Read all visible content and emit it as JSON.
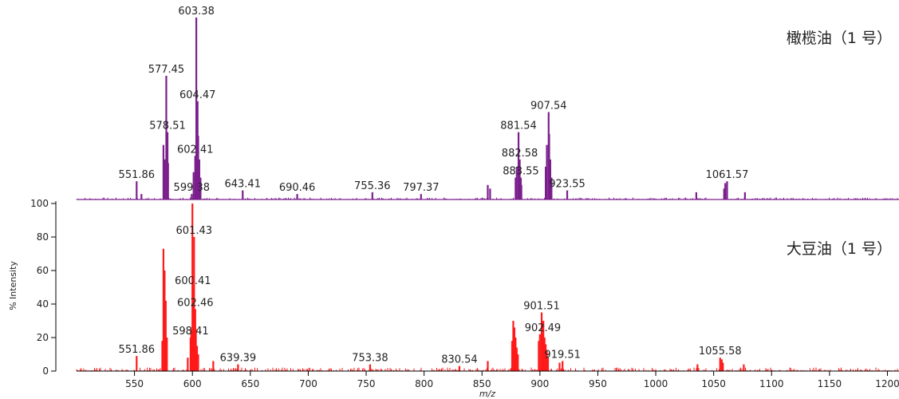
{
  "colors": {
    "top_series": "#7a1f8c",
    "bottom_series": "#ff1a1a",
    "axis": "#000000"
  },
  "chart_data": {
    "type": "line",
    "xlabel": "m/z",
    "ylabel": "% Intensity",
    "xlim": [
      500,
      1210
    ],
    "xticks": [
      550,
      600,
      650,
      700,
      750,
      800,
      850,
      900,
      950,
      1000,
      1050,
      1100,
      1150,
      1200
    ],
    "ylim": [
      0,
      100
    ],
    "yticks": [
      0,
      20,
      40,
      60,
      80,
      100
    ],
    "panels": [
      {
        "title": "橄榄油（1 号）",
        "peaks": [
          {
            "x": 551.86,
            "y": 10,
            "label": "551.86"
          },
          {
            "x": 577.45,
            "y": 68,
            "label": "577.45"
          },
          {
            "x": 578.51,
            "y": 37,
            "label": "578.51"
          },
          {
            "x": 599.38,
            "y": 3,
            "label": "599.38"
          },
          {
            "x": 602.41,
            "y": 24,
            "label": "602.41"
          },
          {
            "x": 603.38,
            "y": 100,
            "label": "603.38"
          },
          {
            "x": 604.47,
            "y": 54,
            "label": "604.47"
          },
          {
            "x": 643.41,
            "y": 5,
            "label": "643.41"
          },
          {
            "x": 690.46,
            "y": 3,
            "label": "690.46"
          },
          {
            "x": 755.36,
            "y": 4,
            "label": "755.36"
          },
          {
            "x": 797.37,
            "y": 3,
            "label": "797.37"
          },
          {
            "x": 881.54,
            "y": 37,
            "label": "881.54"
          },
          {
            "x": 882.58,
            "y": 22,
            "label": "882.58"
          },
          {
            "x": 883.55,
            "y": 12,
            "label": "883.55"
          },
          {
            "x": 907.54,
            "y": 48,
            "label": "907.54"
          },
          {
            "x": 923.55,
            "y": 5,
            "label": "923.55"
          },
          {
            "x": 1061.57,
            "y": 10,
            "label": "1061.57"
          }
        ],
        "extra_peaks": [
          {
            "x": 556,
            "y": 3
          },
          {
            "x": 575,
            "y": 30
          },
          {
            "x": 576,
            "y": 22
          },
          {
            "x": 579,
            "y": 20
          },
          {
            "x": 601,
            "y": 15
          },
          {
            "x": 605,
            "y": 35
          },
          {
            "x": 606,
            "y": 22
          },
          {
            "x": 607,
            "y": 12
          },
          {
            "x": 855,
            "y": 8
          },
          {
            "x": 857,
            "y": 6
          },
          {
            "x": 879,
            "y": 12
          },
          {
            "x": 880,
            "y": 18
          },
          {
            "x": 884,
            "y": 8
          },
          {
            "x": 905,
            "y": 18
          },
          {
            "x": 906,
            "y": 30
          },
          {
            "x": 908,
            "y": 36
          },
          {
            "x": 909,
            "y": 22
          },
          {
            "x": 910,
            "y": 12
          },
          {
            "x": 1035,
            "y": 4
          },
          {
            "x": 1059,
            "y": 6
          },
          {
            "x": 1060,
            "y": 9
          },
          {
            "x": 1077,
            "y": 4
          }
        ]
      },
      {
        "title": "大豆油（1 号）",
        "peaks": [
          {
            "x": 551.86,
            "y": 9,
            "label": "551.86"
          },
          {
            "x": 598.41,
            "y": 20,
            "label": "598.41"
          },
          {
            "x": 600.41,
            "y": 50,
            "label": "600.41"
          },
          {
            "x": 601.43,
            "y": 80,
            "label": "601.43"
          },
          {
            "x": 602.46,
            "y": 37,
            "label": "602.46"
          },
          {
            "x": 639.39,
            "y": 4,
            "label": "639.39"
          },
          {
            "x": 753.38,
            "y": 4,
            "label": "753.38"
          },
          {
            "x": 830.54,
            "y": 3,
            "label": "830.54"
          },
          {
            "x": 901.51,
            "y": 35,
            "label": "901.51"
          },
          {
            "x": 902.49,
            "y": 22,
            "label": "902.49"
          },
          {
            "x": 919.51,
            "y": 6,
            "label": "919.51"
          },
          {
            "x": 1055.58,
            "y": 8,
            "label": "1055.58"
          }
        ],
        "extra_peaks": [
          {
            "x": 574,
            "y": 18
          },
          {
            "x": 575,
            "y": 73
          },
          {
            "x": 576,
            "y": 60
          },
          {
            "x": 577,
            "y": 42
          },
          {
            "x": 578,
            "y": 20
          },
          {
            "x": 596,
            "y": 8
          },
          {
            "x": 599,
            "y": 25
          },
          {
            "x": 600,
            "y": 100
          },
          {
            "x": 603,
            "y": 25
          },
          {
            "x": 604,
            "y": 15
          },
          {
            "x": 605,
            "y": 10
          },
          {
            "x": 618,
            "y": 6
          },
          {
            "x": 855,
            "y": 6
          },
          {
            "x": 876,
            "y": 18
          },
          {
            "x": 877,
            "y": 30
          },
          {
            "x": 878,
            "y": 26
          },
          {
            "x": 879,
            "y": 20
          },
          {
            "x": 880,
            "y": 14
          },
          {
            "x": 881,
            "y": 10
          },
          {
            "x": 899,
            "y": 18
          },
          {
            "x": 900,
            "y": 22
          },
          {
            "x": 903,
            "y": 30
          },
          {
            "x": 904,
            "y": 20
          },
          {
            "x": 905,
            "y": 16
          },
          {
            "x": 906,
            "y": 12
          },
          {
            "x": 907,
            "y": 8
          },
          {
            "x": 917,
            "y": 5
          },
          {
            "x": 1036,
            "y": 4
          },
          {
            "x": 1057,
            "y": 7
          },
          {
            "x": 1058,
            "y": 5
          },
          {
            "x": 1076,
            "y": 4
          }
        ]
      }
    ]
  }
}
